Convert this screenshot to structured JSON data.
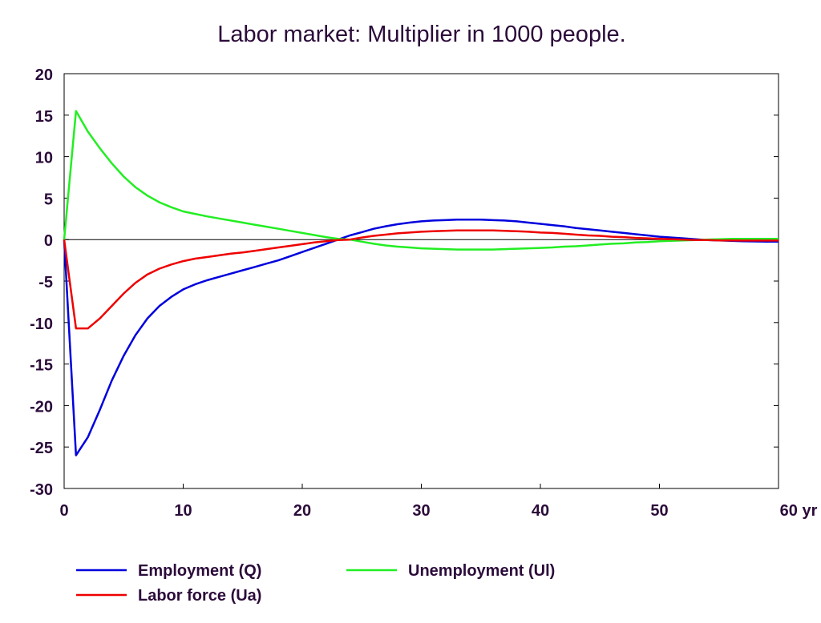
{
  "chart_data": {
    "type": "line",
    "title": "Labor market: Multiplier in 1000 people.",
    "xlabel": "",
    "ylabel": "",
    "x_unit_label": "yr",
    "xlim": [
      0,
      60
    ],
    "ylim": [
      -30,
      20
    ],
    "x_ticks": [
      0,
      10,
      20,
      30,
      40,
      50,
      60
    ],
    "x_tick_labels": [
      "0",
      "10",
      "20",
      "30",
      "40",
      "50",
      "60 yr"
    ],
    "y_ticks": [
      20,
      15,
      10,
      5,
      0,
      -5,
      -10,
      -15,
      -20,
      -25,
      -30
    ],
    "y_tick_labels": [
      "20",
      "15",
      "10",
      "5",
      "0",
      "-5",
      "-10",
      "-15",
      "-20",
      "-25",
      "-30"
    ],
    "grid": false,
    "zero_line": true,
    "legend_position": "bottom",
    "x": [
      0,
      1,
      2,
      3,
      4,
      5,
      6,
      7,
      8,
      9,
      10,
      11,
      12,
      13,
      14,
      15,
      16,
      17,
      18,
      19,
      20,
      21,
      22,
      23,
      24,
      25,
      26,
      27,
      28,
      29,
      30,
      31,
      32,
      33,
      34,
      35,
      36,
      37,
      38,
      39,
      40,
      41,
      42,
      43,
      44,
      45,
      46,
      47,
      48,
      49,
      50,
      51,
      52,
      53,
      54,
      55,
      56,
      57,
      58,
      59,
      60
    ],
    "series": [
      {
        "name": "Employment (Q)",
        "color": "#0000dd",
        "values": [
          0,
          -26,
          -23.8,
          -20.5,
          -17,
          -14,
          -11.5,
          -9.5,
          -8,
          -6.9,
          -6,
          -5.4,
          -4.9,
          -4.5,
          -4.1,
          -3.7,
          -3.3,
          -2.9,
          -2.5,
          -2,
          -1.5,
          -1,
          -0.5,
          0,
          0.5,
          0.9,
          1.3,
          1.6,
          1.85,
          2.05,
          2.2,
          2.3,
          2.35,
          2.4,
          2.4,
          2.4,
          2.35,
          2.3,
          2.2,
          2.05,
          1.9,
          1.75,
          1.6,
          1.4,
          1.25,
          1.1,
          0.95,
          0.8,
          0.65,
          0.5,
          0.35,
          0.25,
          0.15,
          0.05,
          -0.05,
          -0.1,
          -0.15,
          -0.2,
          -0.22,
          -0.25,
          -0.25
        ]
      },
      {
        "name": "Unemployment (Ul)",
        "color": "#22ee22",
        "values": [
          0,
          15.5,
          13,
          11,
          9.2,
          7.6,
          6.3,
          5.3,
          4.5,
          3.9,
          3.4,
          3.1,
          2.8,
          2.55,
          2.3,
          2.05,
          1.8,
          1.55,
          1.3,
          1.05,
          0.8,
          0.55,
          0.3,
          0.1,
          0,
          -0.25,
          -0.5,
          -0.7,
          -0.85,
          -0.95,
          -1.05,
          -1.1,
          -1.15,
          -1.2,
          -1.2,
          -1.2,
          -1.2,
          -1.15,
          -1.1,
          -1.05,
          -1,
          -0.95,
          -0.85,
          -0.8,
          -0.7,
          -0.6,
          -0.5,
          -0.45,
          -0.35,
          -0.3,
          -0.2,
          -0.15,
          -0.1,
          -0.05,
          0,
          0.05,
          0.1,
          0.1,
          0.1,
          0.1,
          0.1
        ]
      },
      {
        "name": "Labor force (Ua)",
        "color": "#ee0000",
        "values": [
          0,
          -10.7,
          -10.7,
          -9.5,
          -8,
          -6.5,
          -5.2,
          -4.2,
          -3.5,
          -3,
          -2.6,
          -2.3,
          -2.1,
          -1.9,
          -1.7,
          -1.55,
          -1.35,
          -1.15,
          -0.95,
          -0.75,
          -0.55,
          -0.35,
          -0.2,
          -0.05,
          0,
          0.25,
          0.45,
          0.6,
          0.75,
          0.85,
          0.95,
          1,
          1.05,
          1.1,
          1.1,
          1.1,
          1.1,
          1.05,
          1,
          0.95,
          0.85,
          0.8,
          0.7,
          0.6,
          0.5,
          0.45,
          0.35,
          0.3,
          0.2,
          0.15,
          0.1,
          0.05,
          0,
          -0.05,
          -0.05,
          -0.1,
          -0.1,
          -0.12,
          -0.12,
          -0.12,
          -0.12
        ]
      }
    ]
  }
}
